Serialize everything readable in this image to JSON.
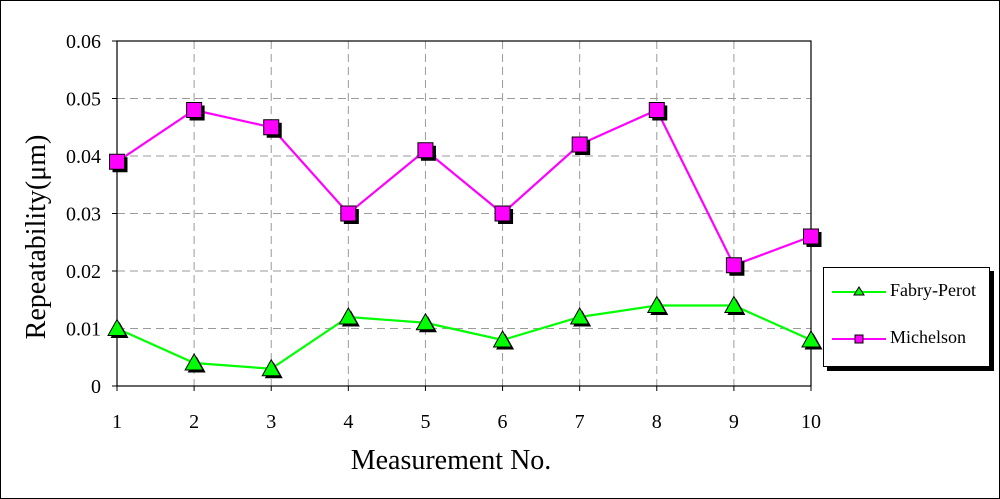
{
  "chart_data": {
    "type": "line",
    "title": "",
    "xlabel": "Measurement No.",
    "ylabel": "Repeatability(μm)",
    "categories": [
      "1",
      "2",
      "3",
      "4",
      "5",
      "6",
      "7",
      "8",
      "9",
      "10"
    ],
    "x": [
      1,
      2,
      3,
      4,
      5,
      6,
      7,
      8,
      9,
      10
    ],
    "ylim": [
      0,
      0.06
    ],
    "yticks": [
      "0",
      "0.01",
      "0.02",
      "0.03",
      "0.04",
      "0.05",
      "0.06"
    ],
    "grid": true,
    "legend_position": "right",
    "series": [
      {
        "name": "Fabry-Perot",
        "marker": "triangle",
        "color": "#00ff00",
        "values": [
          0.01,
          0.004,
          0.003,
          0.012,
          0.011,
          0.008,
          0.012,
          0.014,
          0.014,
          0.008
        ]
      },
      {
        "name": "Michelson",
        "marker": "square",
        "color": "#ff00ff",
        "values": [
          0.039,
          0.048,
          0.045,
          0.03,
          0.041,
          0.03,
          0.042,
          0.048,
          0.021,
          0.026
        ]
      }
    ]
  }
}
